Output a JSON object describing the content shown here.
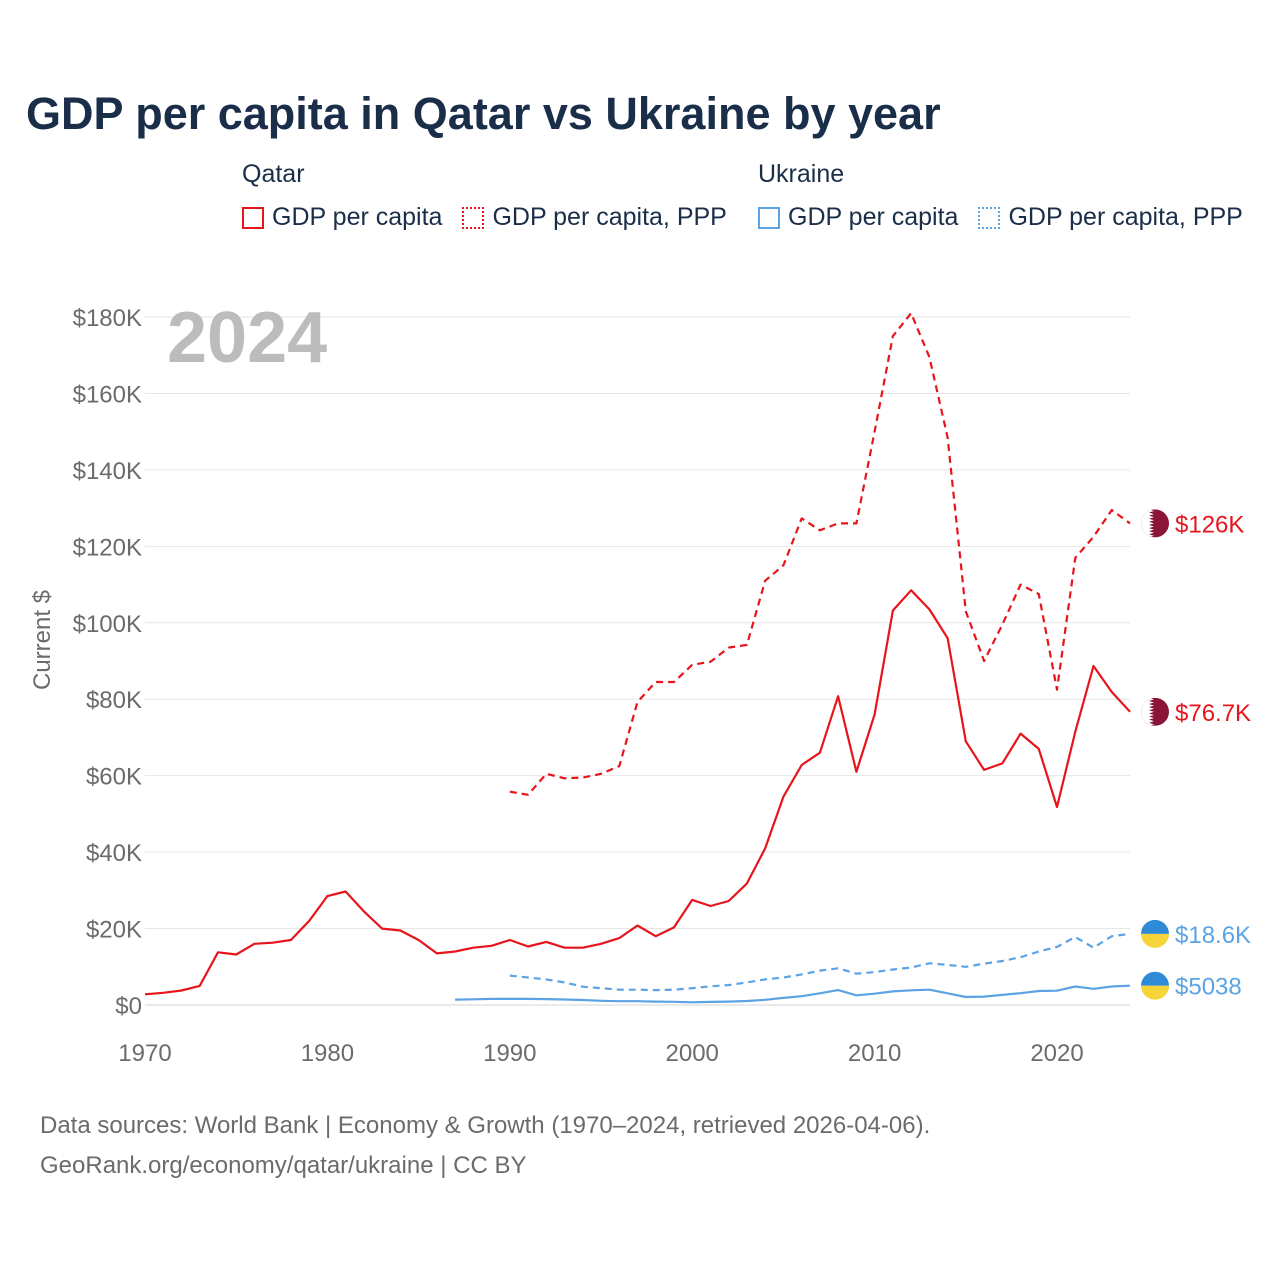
{
  "title": "GDP per capita in Qatar vs Ukraine by year",
  "legend": {
    "groups": [
      {
        "name": "Qatar",
        "color": "#e8141c",
        "items": [
          {
            "label": "GDP per capita",
            "style": "solid"
          },
          {
            "label": "GDP per capita, PPP",
            "style": "dotted"
          }
        ]
      },
      {
        "name": "Ukraine",
        "color": "#5ba3e4",
        "items": [
          {
            "label": "GDP per capita",
            "style": "solid"
          },
          {
            "label": "GDP per capita, PPP",
            "style": "dotted"
          }
        ]
      }
    ]
  },
  "year_watermark": "2024",
  "chart_data": {
    "type": "line",
    "ylabel": "Current $",
    "xlim": [
      1970,
      2024
    ],
    "ylim": [
      0,
      180000
    ],
    "x_ticks": [
      1970,
      1980,
      1990,
      2000,
      2010,
      2020
    ],
    "y_ticks": [
      0,
      20000,
      40000,
      60000,
      80000,
      100000,
      120000,
      140000,
      160000,
      180000
    ],
    "y_tick_labels": [
      "$0",
      "$20K",
      "$40K",
      "$60K",
      "$80K",
      "$100K",
      "$120K",
      "$140K",
      "$160K",
      "$180K"
    ],
    "grid": true,
    "series": [
      {
        "name": "Qatar GDP per capita",
        "country": "Qatar",
        "color": "#e8141c",
        "dash": "solid",
        "end_label": "$76.7K",
        "flag": "qatar",
        "x": [
          1970,
          1971,
          1972,
          1973,
          1974,
          1975,
          1976,
          1977,
          1978,
          1979,
          1980,
          1981,
          1982,
          1983,
          1984,
          1985,
          1986,
          1987,
          1988,
          1989,
          1990,
          1991,
          1992,
          1993,
          1994,
          1995,
          1996,
          1997,
          1998,
          1999,
          2000,
          2001,
          2002,
          2003,
          2004,
          2005,
          2006,
          2007,
          2008,
          2009,
          2010,
          2011,
          2012,
          2013,
          2014,
          2015,
          2016,
          2017,
          2018,
          2019,
          2020,
          2021,
          2022,
          2023,
          2024
        ],
        "values": [
          2800,
          3200,
          3800,
          5000,
          13800,
          13200,
          16000,
          16300,
          17000,
          22000,
          28500,
          29700,
          24500,
          20000,
          19500,
          17000,
          13500,
          14000,
          15000,
          15500,
          17000,
          15300,
          16500,
          15000,
          15000,
          16000,
          17500,
          20800,
          18000,
          20300,
          27500,
          25900,
          27200,
          31800,
          41000,
          54500,
          62800,
          66000,
          80800,
          61000,
          76000,
          103200,
          108500,
          103500,
          96000,
          69000,
          61500,
          63200,
          71000,
          67000,
          51800,
          71500,
          88700,
          81900,
          76700
        ]
      },
      {
        "name": "Qatar GDP per capita, PPP",
        "country": "Qatar",
        "color": "#e8141c",
        "dash": "dashed",
        "end_label": "$126K",
        "flag": "qatar",
        "x": [
          1990,
          1991,
          1992,
          1993,
          1994,
          1995,
          1996,
          1997,
          1998,
          1999,
          2000,
          2001,
          2002,
          2003,
          2004,
          2005,
          2006,
          2007,
          2008,
          2009,
          2010,
          2011,
          2012,
          2013,
          2014,
          2015,
          2016,
          2017,
          2018,
          2019,
          2020,
          2021,
          2022,
          2023,
          2024
        ],
        "values": [
          55800,
          55000,
          60500,
          59300,
          59500,
          60500,
          62500,
          79300,
          84500,
          84500,
          89000,
          89800,
          93500,
          94200,
          111000,
          115000,
          127300,
          124200,
          126000,
          126000,
          150000,
          175000,
          181000,
          169500,
          148500,
          103000,
          90000,
          99500,
          110000,
          107500,
          82500,
          117000,
          122500,
          129500,
          126000
        ]
      },
      {
        "name": "Ukraine GDP per capita",
        "country": "Ukraine",
        "color": "#5ba3e4",
        "dash": "solid",
        "end_label": "$5038",
        "flag": "ukraine",
        "x": [
          1987,
          1988,
          1989,
          1990,
          1991,
          1992,
          1993,
          1994,
          1995,
          1996,
          1997,
          1998,
          1999,
          2000,
          2001,
          2002,
          2003,
          2004,
          2005,
          2006,
          2007,
          2008,
          2009,
          2010,
          2011,
          2012,
          2013,
          2014,
          2015,
          2016,
          2017,
          2018,
          2019,
          2020,
          2021,
          2022,
          2023,
          2024
        ],
        "values": [
          1400,
          1500,
          1600,
          1600,
          1600,
          1550,
          1450,
          1300,
          1100,
          1000,
          1000,
          900,
          850,
          700,
          800,
          900,
          1050,
          1350,
          1850,
          2300,
          3050,
          3900,
          2550,
          2950,
          3550,
          3850,
          4000,
          3050,
          2100,
          2200,
          2650,
          3100,
          3650,
          3750,
          4850,
          4250,
          4850,
          5038
        ]
      },
      {
        "name": "Ukraine GDP per capita, PPP",
        "country": "Ukraine",
        "color": "#5ba3e4",
        "dash": "dashed",
        "end_label": "$18.6K",
        "flag": "ukraine",
        "x": [
          1990,
          1991,
          1992,
          1993,
          1994,
          1995,
          1996,
          1997,
          1998,
          1999,
          2000,
          2001,
          2002,
          2003,
          2004,
          2005,
          2006,
          2007,
          2008,
          2009,
          2010,
          2011,
          2012,
          2013,
          2014,
          2015,
          2016,
          2017,
          2018,
          2019,
          2020,
          2021,
          2022,
          2023,
          2024
        ],
        "values": [
          7700,
          7200,
          6700,
          5900,
          4800,
          4400,
          4000,
          4000,
          3900,
          4000,
          4400,
          4900,
          5200,
          5900,
          6700,
          7200,
          8000,
          9000,
          9600,
          8200,
          8600,
          9300,
          9800,
          10900,
          10500,
          10000,
          10800,
          11500,
          12500,
          14000,
          15200,
          17800,
          15000,
          18000,
          18600
        ]
      }
    ]
  },
  "footer": {
    "line1": "Data sources: World Bank | Economy & Growth (1970–2024, retrieved 2026-04-06).",
    "line2": "GeoRank.org/economy/qatar/ukraine | CC BY"
  }
}
